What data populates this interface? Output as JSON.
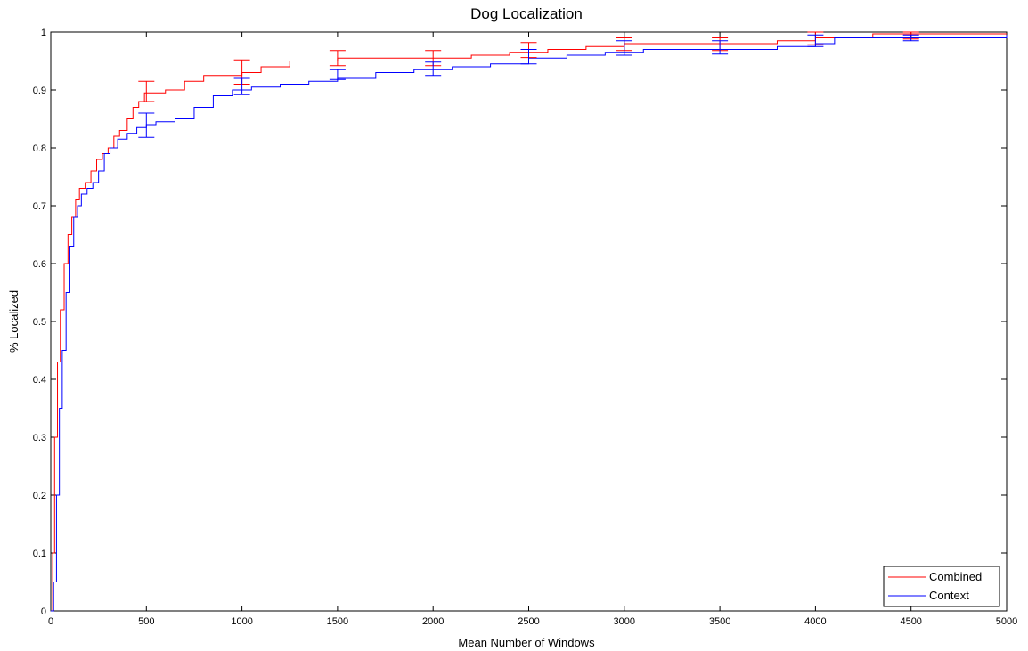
{
  "chart_data": {
    "type": "line",
    "title": "Dog Localization",
    "xlabel": "Mean Number of Windows",
    "ylabel": "% Localized",
    "xlim": [
      0,
      5000
    ],
    "ylim": [
      0,
      1
    ],
    "xticks": [
      0,
      500,
      1000,
      1500,
      2000,
      2500,
      3000,
      3500,
      4000,
      4500,
      5000
    ],
    "yticks": [
      0,
      0.1,
      0.2,
      0.3,
      0.4,
      0.5,
      0.6,
      0.7,
      0.8,
      0.9,
      1
    ],
    "xtick_labels": [
      "0",
      "500",
      "1000",
      "1500",
      "2000",
      "2500",
      "3000",
      "3500",
      "4000",
      "4500",
      "5000"
    ],
    "ytick_labels": [
      "0",
      "0.1",
      "0.2",
      "0.3",
      "0.4",
      "0.5",
      "0.6",
      "0.7",
      "0.8",
      "0.9",
      "1"
    ],
    "grid": false,
    "legend_position": "bottom-right",
    "series": [
      {
        "name": "Combined",
        "color": "#ff0000",
        "step": true,
        "x": [
          0,
          10,
          20,
          35,
          50,
          70,
          90,
          110,
          130,
          150,
          180,
          210,
          240,
          270,
          300,
          330,
          360,
          400,
          430,
          460,
          490,
          600,
          700,
          800,
          1000,
          1100,
          1250,
          1500,
          1800,
          2000,
          2200,
          2400,
          2600,
          2800,
          3000,
          3400,
          3800,
          4000,
          4150,
          4300,
          5000
        ],
        "y": [
          0,
          0.1,
          0.3,
          0.43,
          0.52,
          0.6,
          0.65,
          0.68,
          0.71,
          0.73,
          0.74,
          0.76,
          0.78,
          0.79,
          0.8,
          0.82,
          0.83,
          0.85,
          0.87,
          0.88,
          0.895,
          0.9,
          0.915,
          0.925,
          0.93,
          0.94,
          0.95,
          0.955,
          0.955,
          0.955,
          0.96,
          0.965,
          0.97,
          0.975,
          0.98,
          0.98,
          0.985,
          0.99,
          0.99,
          0.997,
          0.997
        ]
      },
      {
        "name": "Context",
        "color": "#0000ff",
        "step": true,
        "x": [
          0,
          15,
          30,
          45,
          60,
          80,
          100,
          120,
          140,
          160,
          190,
          220,
          250,
          280,
          310,
          350,
          400,
          450,
          500,
          550,
          650,
          750,
          850,
          950,
          1050,
          1200,
          1350,
          1500,
          1700,
          1900,
          2100,
          2300,
          2500,
          2700,
          2900,
          3100,
          3500,
          3800,
          4000,
          4100,
          4500,
          5000
        ],
        "y": [
          0,
          0.05,
          0.2,
          0.35,
          0.45,
          0.55,
          0.63,
          0.68,
          0.7,
          0.72,
          0.73,
          0.74,
          0.76,
          0.79,
          0.8,
          0.815,
          0.825,
          0.835,
          0.84,
          0.845,
          0.85,
          0.87,
          0.89,
          0.9,
          0.905,
          0.91,
          0.915,
          0.92,
          0.93,
          0.935,
          0.94,
          0.945,
          0.955,
          0.96,
          0.965,
          0.97,
          0.97,
          0.975,
          0.98,
          0.99,
          0.99,
          0.995
        ]
      }
    ],
    "error_bars": [
      {
        "series": "Combined",
        "x": [
          500,
          1000,
          1500,
          2000,
          2500,
          3000,
          3500,
          4000,
          4500
        ],
        "low": [
          0.88,
          0.91,
          0.942,
          0.942,
          0.956,
          0.968,
          0.968,
          0.978,
          0.988
        ],
        "high": [
          0.915,
          0.952,
          0.968,
          0.968,
          0.982,
          0.99,
          0.99,
          1.0,
          1.0
        ]
      },
      {
        "series": "Context",
        "x": [
          500,
          1000,
          1500,
          2000,
          2500,
          3000,
          3500,
          4000,
          4500
        ],
        "low": [
          0.818,
          0.892,
          0.918,
          0.925,
          0.945,
          0.96,
          0.962,
          0.975,
          0.985
        ],
        "high": [
          0.86,
          0.92,
          0.935,
          0.948,
          0.97,
          0.985,
          0.985,
          0.995,
          0.995
        ]
      }
    ]
  }
}
